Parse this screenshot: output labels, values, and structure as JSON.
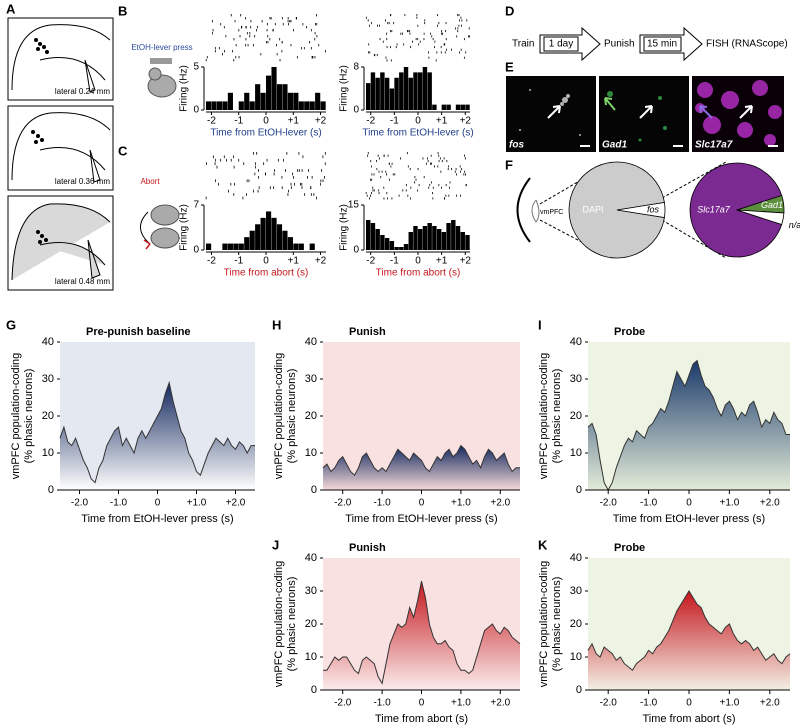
{
  "panel_a": {
    "letter": "A",
    "sections": [
      "lateral 0.24 mm",
      "lateral 0.36 mm",
      "lateral 0.48 mm"
    ]
  },
  "panel_b": {
    "letter": "B",
    "event": "EtOH-lever press"
  },
  "panel_c": {
    "letter": "C",
    "event": "Abort"
  },
  "panel_d": {
    "letter": "D",
    "steps": [
      "Train",
      "Punish",
      "FISH (RNAScope)"
    ],
    "intervals": [
      "1 day",
      "15 min"
    ]
  },
  "panel_e": {
    "letter": "E",
    "channels": [
      "fos",
      "Gad1",
      "Slc17a7"
    ]
  },
  "panel_f": {
    "letter": "F",
    "region": "vmPFC"
  },
  "chart_data": [
    {
      "type": "histogram",
      "bins": [
        -2.2,
        -2.0,
        -1.8,
        -1.6,
        -1.4,
        -1.2,
        -1.0,
        -0.8,
        -0.6,
        -0.4,
        -0.2,
        0,
        0.2,
        0.4,
        0.6,
        0.8,
        1.0,
        1.2,
        1.4,
        1.6,
        1.8,
        2.0,
        2.2
      ],
      "values": [
        1,
        1,
        1,
        1,
        2,
        0,
        1,
        2,
        1,
        3,
        2,
        4,
        5,
        3,
        3,
        2,
        2,
        1,
        1,
        1,
        2,
        1
      ],
      "color": "#000000",
      "xlim": [
        -2.2,
        2.2
      ],
      "ylim": [
        0,
        5
      ],
      "yticks": [
        0,
        5
      ],
      "xticks": [
        -2,
        -1,
        0,
        {
          "value": 1,
          "label": "+1"
        },
        {
          "value": 2,
          "label": "+2"
        }
      ],
      "xlabel": "Time from EtOH-lever (s)",
      "xlabel_color": "#1f3d8a",
      "ylabel": "Firing (Hz)"
    },
    {
      "type": "histogram",
      "bins": [
        -2.2,
        -2.0,
        -1.8,
        -1.6,
        -1.4,
        -1.2,
        -1.0,
        -0.8,
        -0.6,
        -0.4,
        -0.2,
        0,
        0.2,
        0.4,
        0.6,
        0.8,
        1.0,
        1.2,
        1.4,
        1.6,
        1.8,
        2.0,
        2.2
      ],
      "values": [
        5,
        7,
        6,
        7,
        6,
        4,
        6,
        7,
        8,
        6,
        7,
        7,
        8,
        7,
        1,
        0,
        1,
        1,
        0,
        1,
        1,
        1
      ],
      "color": "#000000",
      "xlim": [
        -2.2,
        2.2
      ],
      "ylim": [
        0,
        8
      ],
      "yticks": [
        0,
        8
      ],
      "xticks": [
        -2,
        -1,
        0,
        {
          "value": 1,
          "label": "+1"
        },
        {
          "value": 2,
          "label": "+2"
        }
      ],
      "xlabel": "Time from EtOH-lever (s)",
      "xlabel_color": "#1f3d8a",
      "ylabel": "Firing (Hz)"
    },
    {
      "type": "histogram",
      "bins": [
        -2.2,
        -2.0,
        -1.8,
        -1.6,
        -1.4,
        -1.2,
        -1.0,
        -0.8,
        -0.6,
        -0.4,
        -0.2,
        0,
        0.2,
        0.4,
        0.6,
        0.8,
        1.0,
        1.2,
        1.4,
        1.6,
        1.8,
        2.0,
        2.2
      ],
      "values": [
        1,
        0,
        0,
        1,
        1,
        1,
        1,
        2,
        3,
        4,
        5,
        6,
        5,
        4,
        3,
        2,
        1,
        1,
        0,
        1,
        0,
        0
      ],
      "color": "#000000",
      "xlim": [
        -2.2,
        2.2
      ],
      "ylim": [
        0,
        7
      ],
      "yticks": [
        0,
        7
      ],
      "xticks": [
        -2,
        -1,
        0,
        {
          "value": 1,
          "label": "+1"
        },
        {
          "value": 2,
          "label": "+2"
        }
      ],
      "xlabel": "Time from abort (s)",
      "xlabel_color": "#c4161c",
      "ylabel": "Firing (Hz)"
    },
    {
      "type": "histogram",
      "bins": [
        -2.2,
        -2.0,
        -1.8,
        -1.6,
        -1.4,
        -1.2,
        -1.0,
        -0.8,
        -0.6,
        -0.4,
        -0.2,
        0,
        0.2,
        0.4,
        0.6,
        0.8,
        1.0,
        1.2,
        1.4,
        1.6,
        1.8,
        2.0,
        2.2
      ],
      "values": [
        10,
        9,
        7,
        5,
        4,
        3,
        1,
        1,
        2,
        6,
        8,
        7,
        8,
        9,
        8,
        7,
        6,
        9,
        10,
        8,
        6,
        5
      ],
      "color": "#000000",
      "xlim": [
        -2.2,
        2.2
      ],
      "ylim": [
        0,
        15
      ],
      "yticks": [
        0,
        15
      ],
      "xticks": [
        -2,
        -1,
        0,
        {
          "value": 1,
          "label": "+1"
        },
        {
          "value": 2,
          "label": "+2"
        }
      ],
      "xlabel": "Time from abort (s)",
      "xlabel_color": "#c4161c",
      "ylabel": "Firing (Hz)"
    },
    {
      "type": "pie",
      "labels": [
        "DAPI",
        "fos"
      ],
      "values": [
        95,
        5
      ],
      "colors": [
        "#cccccc",
        "#ffffff"
      ]
    },
    {
      "type": "pie",
      "labels": [
        "Slc17a7",
        "Gad1",
        "n/a"
      ],
      "values": [
        90,
        6,
        4
      ],
      "colors": [
        "#7a2a90",
        "#5e8f3e",
        "#ffffff"
      ]
    },
    {
      "type": "area",
      "panel": "G",
      "title": "Pre-punish baseline",
      "x": [
        -2.5,
        -2.4,
        -2.3,
        -2.2,
        -2.1,
        -2.0,
        -1.9,
        -1.8,
        -1.7,
        -1.6,
        -1.5,
        -1.4,
        -1.3,
        -1.2,
        -1.1,
        -1.0,
        -0.9,
        -0.8,
        -0.7,
        -0.6,
        -0.5,
        -0.4,
        -0.3,
        -0.2,
        -0.1,
        0,
        0.1,
        0.2,
        0.3,
        0.4,
        0.5,
        0.6,
        0.7,
        0.8,
        0.9,
        1.0,
        1.1,
        1.2,
        1.3,
        1.4,
        1.5,
        1.6,
        1.7,
        1.8,
        1.9,
        2.0,
        2.1,
        2.2,
        2.3,
        2.4,
        2.5
      ],
      "values": [
        14,
        17,
        13,
        12,
        14,
        11,
        8,
        6,
        3,
        2,
        6,
        8,
        12,
        14,
        16,
        17,
        12,
        14,
        12,
        10,
        14,
        16,
        14,
        16,
        18,
        20,
        22,
        26,
        29,
        24,
        20,
        16,
        14,
        10,
        8,
        5,
        4,
        7,
        10,
        12,
        14,
        13,
        12,
        14,
        12,
        11,
        13,
        12,
        10,
        12,
        12
      ],
      "color": "#14285e",
      "fade_color": "#ffffff",
      "background": "#e4e8f1",
      "xlim": [
        -2.5,
        2.5
      ],
      "ylim": [
        0,
        40
      ],
      "yticks": [
        0,
        10,
        20,
        30,
        40
      ],
      "xticks": [
        {
          "value": -2,
          "label": "-2.0"
        },
        {
          "value": -1,
          "label": "-1.0"
        },
        0,
        {
          "value": 1,
          "label": "+1.0"
        },
        {
          "value": 2,
          "label": "+2.0"
        }
      ],
      "xlabel": "Time from EtOH-lever press (s)",
      "ylabel": [
        "vmPFC population-coding",
        "(% phasic neurons)"
      ]
    },
    {
      "type": "area",
      "panel": "H",
      "title": "Punish",
      "x": [
        -2.5,
        -2.4,
        -2.3,
        -2.2,
        -2.1,
        -2.0,
        -1.9,
        -1.8,
        -1.7,
        -1.6,
        -1.5,
        -1.4,
        -1.3,
        -1.2,
        -1.1,
        -1.0,
        -0.9,
        -0.8,
        -0.7,
        -0.6,
        -0.5,
        -0.4,
        -0.3,
        -0.2,
        -0.1,
        0,
        0.1,
        0.2,
        0.3,
        0.4,
        0.5,
        0.6,
        0.7,
        0.8,
        0.9,
        1.0,
        1.1,
        1.2,
        1.3,
        1.4,
        1.5,
        1.6,
        1.7,
        1.8,
        1.9,
        2.0,
        2.1,
        2.2,
        2.3,
        2.4,
        2.5
      ],
      "values": [
        6,
        7,
        5,
        6,
        8,
        9,
        7,
        5,
        4,
        6,
        9,
        10,
        8,
        6,
        5,
        6,
        5,
        7,
        9,
        11,
        10,
        9,
        8,
        10,
        9,
        8,
        6,
        5,
        7,
        9,
        8,
        10,
        11,
        9,
        10,
        12,
        11,
        9,
        7,
        8,
        6,
        9,
        11,
        10,
        8,
        9,
        10,
        7,
        5,
        6,
        6
      ],
      "color": "#14285e",
      "fade_color": "#f5dada",
      "background": "#f9e1e1",
      "xlim": [
        -2.5,
        2.5
      ],
      "ylim": [
        0,
        40
      ],
      "yticks": [
        0,
        10,
        20,
        30,
        40
      ],
      "xticks": [
        {
          "value": -2,
          "label": "-2.0"
        },
        {
          "value": -1,
          "label": "-1.0"
        },
        0,
        {
          "value": 1,
          "label": "+1.0"
        },
        {
          "value": 2,
          "label": "+2.0"
        }
      ],
      "xlabel": "Time from EtOH-lever press (s)",
      "ylabel": [
        "vmPFC population-coding",
        "(% phasic neurons)"
      ]
    },
    {
      "type": "area",
      "panel": "I",
      "title": "Probe",
      "x": [
        -2.5,
        -2.4,
        -2.3,
        -2.2,
        -2.1,
        -2.0,
        -1.9,
        -1.8,
        -1.7,
        -1.6,
        -1.5,
        -1.4,
        -1.3,
        -1.2,
        -1.1,
        -1.0,
        -0.9,
        -0.8,
        -0.7,
        -0.6,
        -0.5,
        -0.4,
        -0.3,
        -0.2,
        -0.1,
        0,
        0.1,
        0.2,
        0.3,
        0.4,
        0.5,
        0.6,
        0.7,
        0.8,
        0.9,
        1.0,
        1.1,
        1.2,
        1.3,
        1.4,
        1.5,
        1.6,
        1.7,
        1.8,
        1.9,
        2.0,
        2.1,
        2.2,
        2.3,
        2.4,
        2.5
      ],
      "values": [
        17,
        18,
        15,
        8,
        2,
        0,
        2,
        6,
        9,
        12,
        14,
        13,
        16,
        15,
        14,
        17,
        18,
        20,
        22,
        21,
        24,
        28,
        32,
        30,
        28,
        31,
        34,
        35,
        31,
        28,
        27,
        25,
        22,
        20,
        23,
        24,
        22,
        19,
        21,
        20,
        23,
        24,
        21,
        17,
        19,
        18,
        21,
        19,
        18,
        15,
        15
      ],
      "color": "#1b3a6b",
      "fade_color": "#e3ecd9",
      "background": "#eef4e4",
      "xlim": [
        -2.5,
        2.5
      ],
      "ylim": [
        0,
        40
      ],
      "yticks": [
        0,
        10,
        20,
        30,
        40
      ],
      "xticks": [
        {
          "value": -2,
          "label": "-2.0"
        },
        {
          "value": -1,
          "label": "-1.0"
        },
        0,
        {
          "value": 1,
          "label": "+1.0"
        },
        {
          "value": 2,
          "label": "+2.0"
        }
      ],
      "xlabel": "Time from EtOH-lever press (s)",
      "ylabel": [
        "vmPFC population-coding",
        "(% phasic neurons)"
      ]
    },
    {
      "type": "area",
      "panel": "J",
      "title": "Punish",
      "x": [
        -2.5,
        -2.4,
        -2.3,
        -2.2,
        -2.1,
        -2.0,
        -1.9,
        -1.8,
        -1.7,
        -1.6,
        -1.5,
        -1.4,
        -1.3,
        -1.2,
        -1.1,
        -1.0,
        -0.9,
        -0.8,
        -0.7,
        -0.6,
        -0.5,
        -0.4,
        -0.3,
        -0.2,
        -0.1,
        0,
        0.1,
        0.2,
        0.3,
        0.4,
        0.5,
        0.6,
        0.7,
        0.8,
        0.9,
        1.0,
        1.1,
        1.2,
        1.3,
        1.4,
        1.5,
        1.6,
        1.7,
        1.8,
        1.9,
        2.0,
        2.1,
        2.2,
        2.3,
        2.4,
        2.5
      ],
      "values": [
        6,
        6,
        8,
        10,
        9,
        10,
        10,
        8,
        6,
        5,
        9,
        10,
        9,
        8,
        4,
        2,
        8,
        14,
        17,
        20,
        19,
        20,
        25,
        22,
        27,
        33,
        28,
        20,
        16,
        14,
        14,
        15,
        13,
        12,
        8,
        6,
        6,
        5,
        6,
        10,
        14,
        18,
        19,
        20,
        18,
        17,
        19,
        18,
        16,
        15,
        14
      ],
      "color": "#c4161c",
      "fade_color": "#fbecec",
      "background": "#f9e1e1",
      "xlim": [
        -2.5,
        2.5
      ],
      "ylim": [
        0,
        40
      ],
      "yticks": [
        0,
        10,
        20,
        30,
        40
      ],
      "xticks": [
        {
          "value": -2,
          "label": "-2.0"
        },
        {
          "value": -1,
          "label": "-1.0"
        },
        0,
        {
          "value": 1,
          "label": "+1.0"
        },
        {
          "value": 2,
          "label": "+2.0"
        }
      ],
      "xlabel": "Time from abort (s)",
      "ylabel": [
        "vmPFC population-coding",
        "(% phasic neurons)"
      ]
    },
    {
      "type": "area",
      "panel": "K",
      "title": "Probe",
      "x": [
        -2.5,
        -2.4,
        -2.3,
        -2.2,
        -2.1,
        -2.0,
        -1.9,
        -1.8,
        -1.7,
        -1.6,
        -1.5,
        -1.4,
        -1.3,
        -1.2,
        -1.1,
        -1.0,
        -0.9,
        -0.8,
        -0.7,
        -0.6,
        -0.5,
        -0.4,
        -0.3,
        -0.2,
        -0.1,
        0,
        0.1,
        0.2,
        0.3,
        0.4,
        0.5,
        0.6,
        0.7,
        0.8,
        0.9,
        1.0,
        1.1,
        1.2,
        1.3,
        1.4,
        1.5,
        1.6,
        1.7,
        1.8,
        1.9,
        2.0,
        2.1,
        2.2,
        2.3,
        2.4,
        2.5
      ],
      "values": [
        12,
        14,
        11,
        10,
        13,
        12,
        11,
        9,
        10,
        8,
        7,
        6,
        8,
        9,
        10,
        12,
        11,
        13,
        14,
        16,
        18,
        21,
        24,
        26,
        28,
        30,
        28,
        26,
        25,
        22,
        20,
        19,
        18,
        17,
        19,
        20,
        17,
        15,
        14,
        15,
        14,
        12,
        13,
        11,
        9,
        10,
        11,
        9,
        8,
        10,
        11
      ],
      "color": "#c4161c",
      "fade_color": "#f3efe4",
      "background": "#eef4e4",
      "xlim": [
        -2.5,
        2.5
      ],
      "ylim": [
        0,
        40
      ],
      "yticks": [
        0,
        10,
        20,
        30,
        40
      ],
      "xticks": [
        {
          "value": -2,
          "label": "-2.0"
        },
        {
          "value": -1,
          "label": "-1.0"
        },
        0,
        {
          "value": 1,
          "label": "+1.0"
        },
        {
          "value": 2,
          "label": "+2.0"
        }
      ],
      "xlabel": "Time from abort (s)",
      "ylabel": [
        "vmPFC population-coding",
        "(% phasic neurons)"
      ]
    }
  ]
}
